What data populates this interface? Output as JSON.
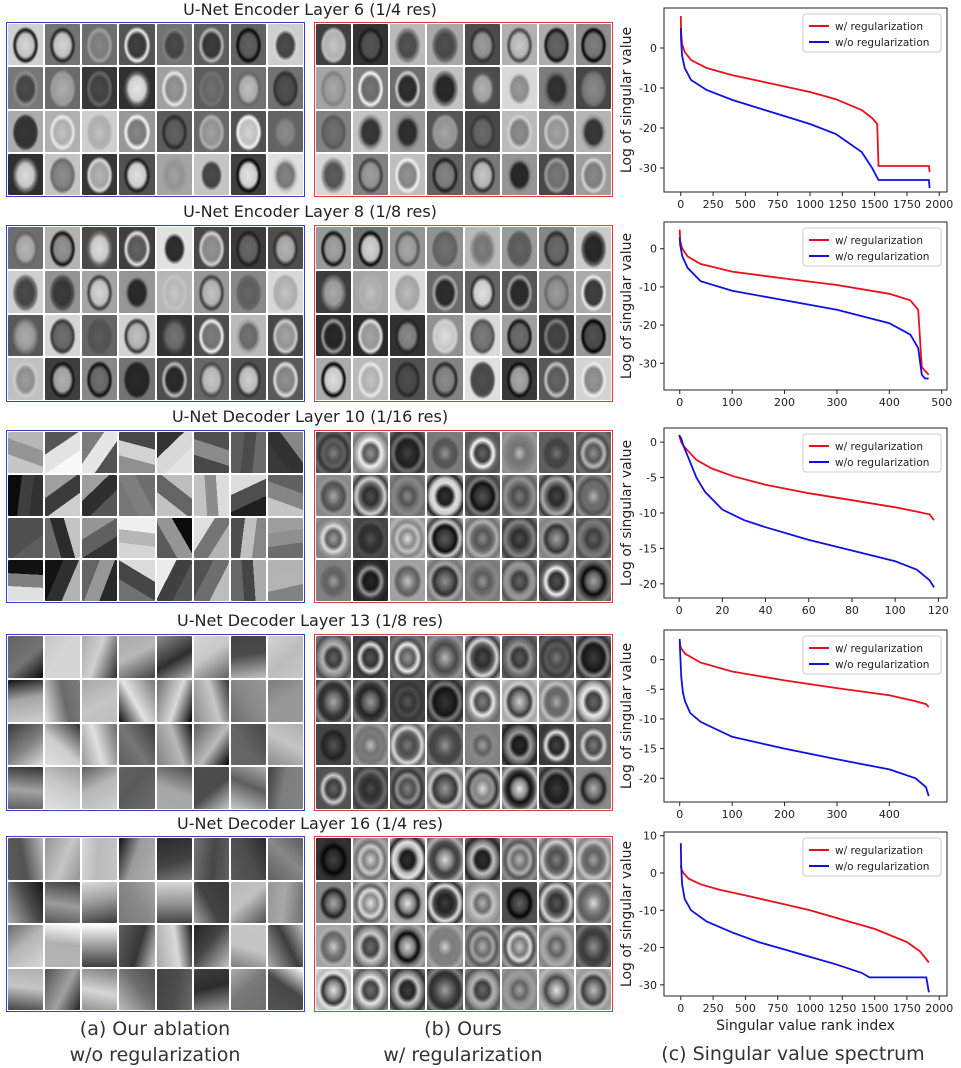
{
  "layers": [
    {
      "title": "U-Net Encoder Layer 6 (1/4 res)",
      "style": "brain-fine"
    },
    {
      "title": "U-Net Encoder Layer 8 (1/8 res)",
      "style": "brain-blob"
    },
    {
      "title": "U-Net Decoder Layer 10 (1/16 res)",
      "style": "pixel"
    },
    {
      "title": "U-Net Decoder Layer 13 (1/8 res)",
      "style": "smooth"
    },
    {
      "title": "U-Net Decoder Layer 16 (1/4 res)",
      "style": "smooth"
    }
  ],
  "captions": {
    "a_line1": "(a) Our ablation",
    "a_line2": "w/o regularization",
    "b_line1": "(b) Ours",
    "b_line2": "w/ regularization",
    "c_line1": "(c) Singular value spectrum"
  },
  "colors": {
    "blue_border": "#3b3bd6",
    "red_border": "#e33b3b",
    "series_red": "#e8101c",
    "series_blue": "#1010e0"
  },
  "chart_data": [
    {
      "type": "line",
      "ylabel": "Log of singular value",
      "xlabel": "",
      "xlim": [
        -130,
        2060
      ],
      "ylim": [
        -36,
        10
      ],
      "xticks": [
        0,
        250,
        500,
        750,
        1000,
        1250,
        1500,
        1750,
        2000
      ],
      "yticks": [
        -30,
        -20,
        -10,
        0
      ],
      "legend": "top-right",
      "series": [
        {
          "name": "w/ regularization",
          "color": "#e8101c",
          "x": [
            0,
            2,
            10,
            30,
            80,
            200,
            400,
            600,
            800,
            1000,
            1200,
            1400,
            1480,
            1520,
            1530,
            1600,
            1800,
            1920,
            1925
          ],
          "y": [
            8,
            4,
            1,
            -1,
            -3,
            -5,
            -6.8,
            -8.2,
            -9.6,
            -11,
            -12.8,
            -15.5,
            -17.5,
            -19,
            -29.5,
            -29.5,
            -29.5,
            -29.5,
            -31
          ]
        },
        {
          "name": "w/o regularization",
          "color": "#1010e0",
          "x": [
            0,
            2,
            10,
            30,
            80,
            200,
            400,
            600,
            800,
            1000,
            1200,
            1400,
            1480,
            1530,
            1600,
            1800,
            1920,
            1925
          ],
          "y": [
            5,
            2,
            -2,
            -5,
            -8,
            -10.5,
            -13,
            -15,
            -17,
            -19,
            -21.5,
            -26,
            -30,
            -33,
            -33,
            -33,
            -33,
            -35
          ]
        }
      ]
    },
    {
      "type": "line",
      "ylabel": "Log of singular value",
      "xlabel": "",
      "xlim": [
        -30,
        510
      ],
      "ylim": [
        -37,
        7
      ],
      "xticks": [
        0,
        100,
        200,
        300,
        400,
        500
      ],
      "yticks": [
        -30,
        -20,
        -10,
        0
      ],
      "legend": "top-right",
      "series": [
        {
          "name": "w/ regularization",
          "color": "#e8101c",
          "x": [
            0,
            1,
            5,
            15,
            40,
            100,
            200,
            300,
            400,
            440,
            455,
            462,
            468,
            475
          ],
          "y": [
            5,
            2,
            0,
            -2,
            -4,
            -6,
            -7.8,
            -9.5,
            -11.8,
            -13.5,
            -16,
            -31,
            -32,
            -33
          ]
        },
        {
          "name": "w/o regularization",
          "color": "#1010e0",
          "x": [
            0,
            1,
            5,
            15,
            40,
            100,
            200,
            300,
            400,
            440,
            455,
            462,
            468,
            475
          ],
          "y": [
            3,
            1,
            -2,
            -5,
            -8.5,
            -11,
            -13.5,
            -16,
            -19.5,
            -22.5,
            -26,
            -33,
            -34,
            -34
          ]
        }
      ]
    },
    {
      "type": "line",
      "ylabel": "Log of singular value",
      "xlabel": "",
      "xlim": [
        -7,
        124
      ],
      "ylim": [
        -22,
        2
      ],
      "xticks": [
        0,
        20,
        40,
        60,
        80,
        100,
        120
      ],
      "yticks": [
        -20,
        -15,
        -10,
        -5,
        0
      ],
      "legend": "top-right",
      "series": [
        {
          "name": "w/ regularization",
          "color": "#e8101c",
          "x": [
            0,
            1,
            2,
            4,
            8,
            15,
            25,
            40,
            60,
            80,
            100,
            110,
            116,
            118
          ],
          "y": [
            1,
            0,
            -0.5,
            -1.2,
            -2.5,
            -3.7,
            -4.8,
            -6,
            -7.2,
            -8.2,
            -9.2,
            -9.8,
            -10.2,
            -11
          ]
        },
        {
          "name": "w/o regularization",
          "color": "#1010e0",
          "x": [
            0,
            1,
            2,
            4,
            6,
            8,
            12,
            20,
            30,
            40,
            60,
            80,
            100,
            110,
            116,
            118
          ],
          "y": [
            1,
            0.5,
            -0.5,
            -2,
            -3.5,
            -5,
            -7,
            -9.5,
            -11,
            -12,
            -13.8,
            -15.3,
            -16.8,
            -18,
            -19.5,
            -20.5
          ]
        }
      ]
    },
    {
      "type": "line",
      "ylabel": "Log of singular value",
      "xlabel": "",
      "xlim": [
        -30,
        510
      ],
      "ylim": [
        -24,
        5
      ],
      "xticks": [
        0,
        100,
        200,
        300,
        400
      ],
      "yticks": [
        -20,
        -15,
        -10,
        -5,
        0
      ],
      "legend": "top-right",
      "series": [
        {
          "name": "w/ regularization",
          "color": "#e8101c",
          "x": [
            0,
            2,
            10,
            40,
            100,
            200,
            300,
            400,
            450,
            470,
            475
          ],
          "y": [
            3,
            2,
            1,
            -0.5,
            -2,
            -3.5,
            -4.8,
            -6,
            -7,
            -7.5,
            -8
          ]
        },
        {
          "name": "w/o regularization",
          "color": "#1010e0",
          "x": [
            0,
            1,
            3,
            6,
            10,
            20,
            40,
            100,
            200,
            300,
            400,
            450,
            470,
            475
          ],
          "y": [
            3.5,
            1,
            -3,
            -5.5,
            -7,
            -9,
            -10.5,
            -13,
            -15,
            -16.8,
            -18.5,
            -20,
            -21.5,
            -23
          ]
        }
      ]
    },
    {
      "type": "line",
      "ylabel": "Log of singular value",
      "xlabel": "Singular value rank index",
      "xlim": [
        -130,
        2060
      ],
      "ylim": [
        -33,
        11
      ],
      "xticks": [
        0,
        250,
        500,
        750,
        1000,
        1250,
        1500,
        1750,
        2000
      ],
      "yticks": [
        -30,
        -20,
        -10,
        0,
        10
      ],
      "legend": "top-right",
      "series": [
        {
          "name": "w/ regularization",
          "color": "#e8101c",
          "x": [
            0,
            5,
            20,
            60,
            150,
            300,
            500,
            750,
            1000,
            1250,
            1500,
            1750,
            1850,
            1920
          ],
          "y": [
            2,
            1,
            0,
            -1.5,
            -3,
            -4.5,
            -6,
            -8,
            -10,
            -12.5,
            -15,
            -18.5,
            -21,
            -24
          ]
        },
        {
          "name": "w/o regularization",
          "color": "#1010e0",
          "x": [
            0,
            3,
            10,
            30,
            80,
            200,
            400,
            600,
            800,
            1000,
            1200,
            1400,
            1460,
            1500,
            1700,
            1900,
            1920
          ],
          "y": [
            8,
            2,
            -3,
            -7,
            -10,
            -13,
            -16,
            -18.5,
            -20.5,
            -22.5,
            -24.5,
            -26.8,
            -28,
            -28,
            -28,
            -28,
            -32
          ]
        }
      ]
    }
  ]
}
